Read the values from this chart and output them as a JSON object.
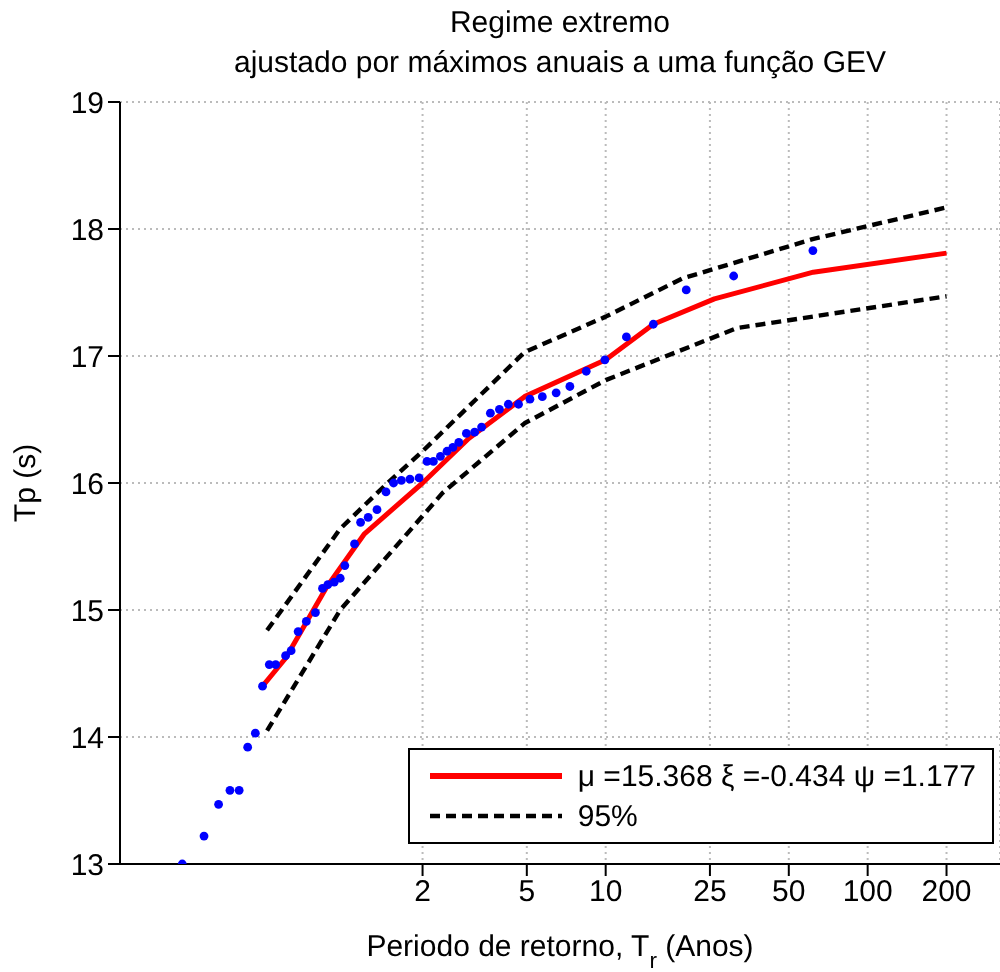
{
  "chart_data": {
    "type": "line",
    "title": "Regime extremo",
    "subtitle": "ajustado por máximos anuais a uma função GEV",
    "xlabel": "Periodo de retorno, T$_{r}$ (Anos)",
    "ylabel": "Tp (s)",
    "log": "x",
    "xlim": [
      0.14,
      320
    ],
    "xticks": [
      2,
      5,
      10,
      25,
      50,
      100,
      200
    ],
    "ylim": [
      13,
      19
    ],
    "yticks": [
      13,
      14,
      15,
      16,
      17,
      18,
      19
    ],
    "grid": true,
    "legend": "bottom right",
    "series": [
      {
        "type": "scatter",
        "marker": "circle",
        "color": "#0000ff",
        "x": [
          0.242,
          0.293,
          0.333,
          0.368,
          0.399,
          0.43,
          0.46,
          0.49,
          0.52,
          0.55,
          0.6,
          0.63,
          0.67,
          0.72,
          0.78,
          0.83,
          0.87,
          0.92,
          0.97,
          1.01,
          1.1,
          1.16,
          1.24,
          1.34,
          1.45,
          1.55,
          1.66,
          1.79,
          1.94,
          2.08,
          2.2,
          2.34,
          2.48,
          2.61,
          2.75,
          2.94,
          3.16,
          3.36,
          3.63,
          3.93,
          4.25,
          4.65,
          5.14,
          5.73,
          6.47,
          7.3,
          8.43,
          9.93,
          12.0,
          15.2,
          20.3,
          30.8,
          61.8
        ],
        "values": [
          13.0,
          13.22,
          13.47,
          13.58,
          13.58,
          13.92,
          14.03,
          14.4,
          14.57,
          14.57,
          14.64,
          14.68,
          14.83,
          14.91,
          14.98,
          15.17,
          15.2,
          15.22,
          15.25,
          15.35,
          15.52,
          15.69,
          15.73,
          15.79,
          15.93,
          16.0,
          16.02,
          16.03,
          16.04,
          16.17,
          16.17,
          16.21,
          16.25,
          16.28,
          16.32,
          16.39,
          16.4,
          16.44,
          16.55,
          16.58,
          16.62,
          16.62,
          16.66,
          16.68,
          16.71,
          16.76,
          16.88,
          16.97,
          17.15,
          17.25,
          17.52,
          17.63,
          17.83
        ]
      },
      {
        "name": "μ =15.368 ξ =-0.434 ψ =1.177",
        "color": "#ff0000",
        "line_style": "solid",
        "x": [
          0.49,
          0.6,
          0.86,
          1.2,
          2,
          3,
          4.9,
          10,
          15.2,
          26,
          62,
          200
        ],
        "values": [
          14.4,
          14.62,
          15.18,
          15.6,
          16.0,
          16.35,
          16.68,
          16.97,
          17.25,
          17.45,
          17.66,
          17.81
        ]
      },
      {
        "name": "95%",
        "color": "#000000",
        "line_style": "dashed",
        "x": [
          0.51,
          0.97,
          1.47,
          2,
          4.9,
          10,
          19.6,
          61.6,
          200
        ],
        "values": [
          14.84,
          15.64,
          16.0,
          16.25,
          17.03,
          17.31,
          17.61,
          17.92,
          18.17
        ]
      },
      {
        "color": "#000000",
        "line_style": "dashed",
        "x": [
          0.51,
          0.97,
          2,
          2.38,
          4.9,
          10,
          31.7,
          200
        ],
        "values": [
          14.05,
          15.0,
          15.74,
          15.92,
          16.47,
          16.81,
          17.22,
          17.47
        ]
      }
    ]
  }
}
